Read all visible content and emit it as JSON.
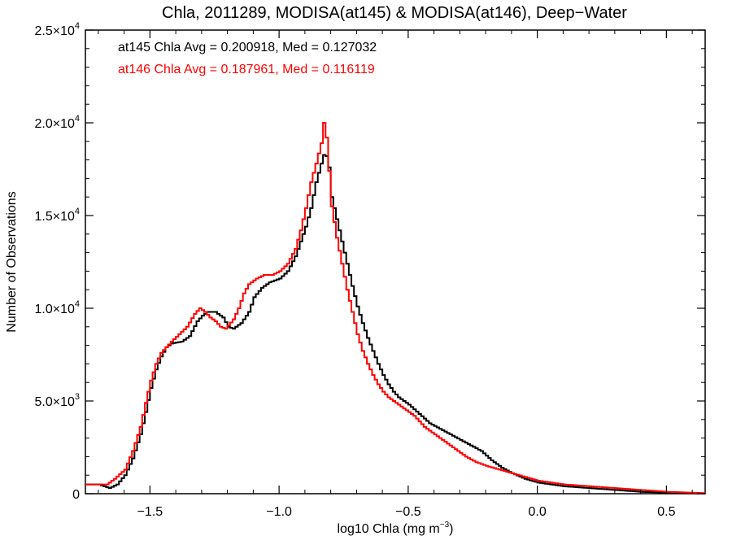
{
  "chart_data": {
    "type": "line",
    "title": "Chla, 2011289, MODISA(at145) & MODISA(at146), Deep−Water",
    "xlabel": "log10 Chla (mg m",
    "xlabel_sup": "−3",
    "xlabel_close": ")",
    "ylabel": "Number of Observations",
    "xlim": [
      -1.75,
      0.65
    ],
    "ylim": [
      0,
      25000
    ],
    "grid": false,
    "x_ticks": [
      {
        "value": -1.5,
        "label": "−1.5"
      },
      {
        "value": -1.0,
        "label": "−1.0"
      },
      {
        "value": -0.5,
        "label": "−0.5"
      },
      {
        "value": 0.0,
        "label": "0.0"
      },
      {
        "value": 0.5,
        "label": "0.5"
      }
    ],
    "y_ticks": [
      {
        "value": 0,
        "mant": "0",
        "exp": ""
      },
      {
        "value": 5000,
        "mant": "5.0×10",
        "exp": "3"
      },
      {
        "value": 10000,
        "mant": "1.0×10",
        "exp": "4"
      },
      {
        "value": 15000,
        "mant": "1.5×10",
        "exp": "4"
      },
      {
        "value": 20000,
        "mant": "2.0×10",
        "exp": "4"
      },
      {
        "value": 25000,
        "mant": "2.5×10",
        "exp": "4"
      }
    ],
    "annotations": [
      {
        "text": "at145 Chla Avg = 0.200918, Med = 0.127032",
        "color": "#000000"
      },
      {
        "text": "at146 Chla Avg = 0.187961, Med = 0.116119",
        "color": "#ff0000"
      }
    ],
    "series": [
      {
        "color": "#000000",
        "points": [
          [
            -1.75,
            500
          ],
          [
            -1.7,
            500
          ],
          [
            -1.66,
            300
          ],
          [
            -1.63,
            500
          ],
          [
            -1.6,
            1000
          ],
          [
            -1.57,
            1900
          ],
          [
            -1.54,
            3200
          ],
          [
            -1.52,
            4400
          ],
          [
            -1.5,
            5700
          ],
          [
            -1.48,
            6700
          ],
          [
            -1.46,
            7400
          ],
          [
            -1.44,
            7900
          ],
          [
            -1.42,
            8100
          ],
          [
            -1.38,
            8200
          ],
          [
            -1.35,
            8500
          ],
          [
            -1.32,
            9300
          ],
          [
            -1.3,
            9600
          ],
          [
            -1.28,
            9800
          ],
          [
            -1.25,
            9800
          ],
          [
            -1.22,
            9500
          ],
          [
            -1.2,
            9000
          ],
          [
            -1.18,
            8900
          ],
          [
            -1.15,
            9200
          ],
          [
            -1.12,
            9800
          ],
          [
            -1.1,
            10600
          ],
          [
            -1.07,
            11100
          ],
          [
            -1.04,
            11400
          ],
          [
            -1.0,
            11600
          ],
          [
            -0.97,
            12000
          ],
          [
            -0.94,
            12800
          ],
          [
            -0.92,
            13600
          ],
          [
            -0.9,
            14400
          ],
          [
            -0.88,
            15400
          ],
          [
            -0.86,
            16800
          ],
          [
            -0.84,
            17800
          ],
          [
            -0.825,
            18500
          ],
          [
            -0.81,
            17600
          ],
          [
            -0.8,
            16000
          ],
          [
            -0.78,
            14800
          ],
          [
            -0.76,
            13600
          ],
          [
            -0.74,
            12400
          ],
          [
            -0.72,
            11200
          ],
          [
            -0.7,
            10100
          ],
          [
            -0.68,
            9200
          ],
          [
            -0.66,
            8400
          ],
          [
            -0.64,
            7700
          ],
          [
            -0.62,
            7000
          ],
          [
            -0.6,
            6400
          ],
          [
            -0.58,
            5900
          ],
          [
            -0.56,
            5500
          ],
          [
            -0.54,
            5200
          ],
          [
            -0.5,
            4800
          ],
          [
            -0.46,
            4300
          ],
          [
            -0.42,
            3800
          ],
          [
            -0.38,
            3500
          ],
          [
            -0.34,
            3200
          ],
          [
            -0.3,
            2900
          ],
          [
            -0.26,
            2600
          ],
          [
            -0.22,
            2300
          ],
          [
            -0.18,
            1800
          ],
          [
            -0.14,
            1400
          ],
          [
            -0.1,
            1100
          ],
          [
            -0.05,
            800
          ],
          [
            0.0,
            600
          ],
          [
            0.1,
            400
          ],
          [
            0.2,
            300
          ],
          [
            0.3,
            200
          ],
          [
            0.4,
            100
          ],
          [
            0.5,
            50
          ],
          [
            0.6,
            20
          ],
          [
            0.65,
            10
          ]
        ]
      },
      {
        "color": "#ff0000",
        "points": [
          [
            -1.75,
            500
          ],
          [
            -1.7,
            500
          ],
          [
            -1.67,
            500
          ],
          [
            -1.64,
            800
          ],
          [
            -1.6,
            1300
          ],
          [
            -1.57,
            2300
          ],
          [
            -1.54,
            3600
          ],
          [
            -1.52,
            4900
          ],
          [
            -1.5,
            6100
          ],
          [
            -1.48,
            7000
          ],
          [
            -1.46,
            7600
          ],
          [
            -1.44,
            7900
          ],
          [
            -1.42,
            8200
          ],
          [
            -1.39,
            8600
          ],
          [
            -1.36,
            9000
          ],
          [
            -1.33,
            9700
          ],
          [
            -1.31,
            10000
          ],
          [
            -1.29,
            9800
          ],
          [
            -1.27,
            9500
          ],
          [
            -1.25,
            9300
          ],
          [
            -1.23,
            9000
          ],
          [
            -1.21,
            8900
          ],
          [
            -1.18,
            9400
          ],
          [
            -1.16,
            10000
          ],
          [
            -1.14,
            10800
          ],
          [
            -1.12,
            11300
          ],
          [
            -1.09,
            11600
          ],
          [
            -1.06,
            11800
          ],
          [
            -1.03,
            11800
          ],
          [
            -1.0,
            12000
          ],
          [
            -0.97,
            12400
          ],
          [
            -0.94,
            13200
          ],
          [
            -0.92,
            14200
          ],
          [
            -0.9,
            15400
          ],
          [
            -0.88,
            16800
          ],
          [
            -0.86,
            17800
          ],
          [
            -0.84,
            18900
          ],
          [
            -0.83,
            20000
          ],
          [
            -0.82,
            19200
          ],
          [
            -0.81,
            17400
          ],
          [
            -0.8,
            15500
          ],
          [
            -0.78,
            13800
          ],
          [
            -0.76,
            12400
          ],
          [
            -0.74,
            11000
          ],
          [
            -0.72,
            9800
          ],
          [
            -0.7,
            8600
          ],
          [
            -0.68,
            7700
          ],
          [
            -0.66,
            7000
          ],
          [
            -0.64,
            6400
          ],
          [
            -0.62,
            5900
          ],
          [
            -0.6,
            5500
          ],
          [
            -0.58,
            5200
          ],
          [
            -0.55,
            4900
          ],
          [
            -0.52,
            4600
          ],
          [
            -0.48,
            4200
          ],
          [
            -0.44,
            3600
          ],
          [
            -0.4,
            3200
          ],
          [
            -0.36,
            2800
          ],
          [
            -0.32,
            2400
          ],
          [
            -0.28,
            2000
          ],
          [
            -0.24,
            1700
          ],
          [
            -0.2,
            1500
          ],
          [
            -0.15,
            1300
          ],
          [
            -0.1,
            1100
          ],
          [
            -0.05,
            900
          ],
          [
            0.0,
            700
          ],
          [
            0.1,
            500
          ],
          [
            0.2,
            400
          ],
          [
            0.3,
            300
          ],
          [
            0.4,
            200
          ],
          [
            0.5,
            100
          ],
          [
            0.6,
            50
          ],
          [
            0.65,
            30
          ]
        ]
      }
    ]
  }
}
